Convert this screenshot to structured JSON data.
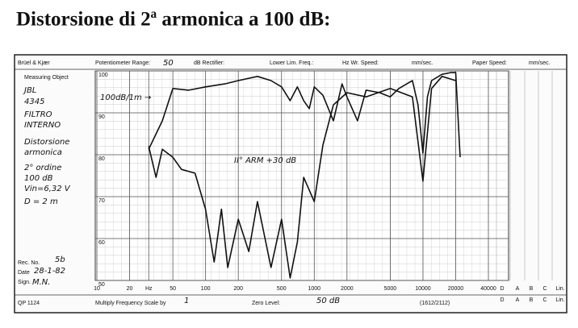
{
  "chart_data": {
    "type": "line",
    "title": "Distorsione di 2ª armonica a 100 dB:",
    "xscale": "log",
    "xlim": [
      10,
      40000
    ],
    "xticks": [
      10,
      20,
      {
        "value": 30,
        "label": "Hz"
      },
      50,
      100,
      200,
      500,
      1000,
      2000,
      5000,
      10000,
      20000,
      40000
    ],
    "ylim": [
      50,
      100
    ],
    "yticks": [
      50,
      60,
      70,
      80,
      90,
      100
    ],
    "grid": true,
    "weighting_labels": [
      "D",
      "A",
      "B",
      "C",
      "Lin."
    ],
    "header_texts": [
      "Brüel & Kjær",
      "Potentiometer Range:",
      "50",
      "dB Rectifier:",
      "Lower Lim. Freq.:",
      "Hz Wr. Speed:",
      "mm/sec.",
      "Paper Speed:",
      "mm/sec."
    ],
    "notes": [
      "Measuring Object",
      "JBL",
      "4345",
      "FILTRO",
      "INTERNO",
      "Distorsione",
      "armonica",
      "2° ordine",
      "100 dB",
      "Vin=6,32 V",
      "D = 2 m"
    ],
    "record": [
      "Rec. No.",
      "5b",
      "Date",
      "28-1-82",
      "Sign.",
      "M.N."
    ],
    "footer_texts": [
      "QP 1124",
      "Multiply Frequency Scale by",
      "1",
      "Zero Level:",
      "50 dB",
      "(1612/2112)"
    ],
    "annotations": [
      "100dB/1m →",
      "II° ARM +30 dB"
    ],
    "series": [
      {
        "name": "100dB/1m",
        "color": "#111",
        "x": [
          30,
          40,
          50,
          70,
          100,
          150,
          200,
          300,
          400,
          500,
          600,
          700,
          800,
          900,
          1000,
          1200,
          1500,
          1800,
          2000,
          2500,
          3000,
          4000,
          5000,
          6000,
          8000,
          9000,
          10000,
          11000,
          12000,
          15000,
          18000,
          20000,
          22000
        ],
        "values": [
          81.3,
          88.1,
          95.8,
          95.4,
          96.2,
          96.9,
          97.7,
          98.7,
          97.7,
          96.2,
          92.9,
          96.2,
          92.9,
          91,
          96.2,
          94.2,
          88.1,
          96.9,
          93.8,
          88.1,
          95.4,
          94.8,
          93.8,
          95.8,
          97.7,
          91.9,
          80.4,
          93.8,
          97.7,
          99.2,
          99.6,
          99.6,
          79.4
        ]
      },
      {
        "name": "II° ARM +30 dB",
        "color": "#111",
        "x": [
          30,
          35,
          40,
          50,
          60,
          80,
          100,
          120,
          140,
          160,
          200,
          250,
          300,
          400,
          500,
          600,
          700,
          800,
          1000,
          1200,
          1500,
          2000,
          3000,
          5000,
          8000,
          10000,
          12000,
          15000,
          20000
        ],
        "values": [
          82,
          74.6,
          81.3,
          79.4,
          76.5,
          75.6,
          67,
          54.4,
          67,
          53.1,
          64.6,
          56.9,
          68.8,
          53.1,
          64.6,
          50.6,
          59.2,
          74.6,
          68.8,
          82.3,
          91.9,
          94.8,
          93.8,
          95.8,
          93.8,
          73.7,
          95.8,
          98.7,
          97.7
        ]
      }
    ]
  }
}
